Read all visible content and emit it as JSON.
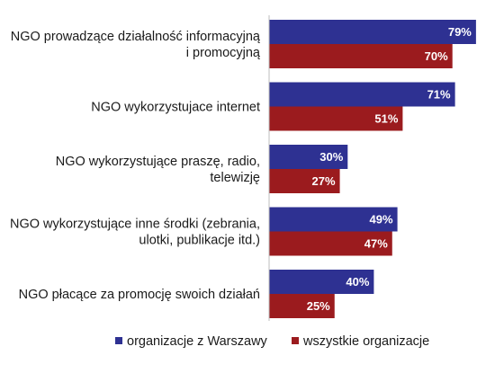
{
  "chart_data": {
    "type": "bar",
    "orientation": "horizontal",
    "categories": [
      [
        "NGO prowadzące działalność informacyjną",
        "i promocyjną"
      ],
      [
        "NGO wykorzystujace internet"
      ],
      [
        "NGO wykorzystujące praszę, radio,",
        "telewizję"
      ],
      [
        "NGO wykorzystujące inne środki (zebrania,",
        "ulotki, publikacje itd.)"
      ],
      [
        "NGO płacące za promocję swoich działań"
      ]
    ],
    "series": [
      {
        "name": "organizacje z Warszawy",
        "color": "#2e3192",
        "values": [
          79,
          71,
          30,
          49,
          40
        ],
        "labels": [
          "79%",
          "71%",
          "30%",
          "49%",
          "40%"
        ]
      },
      {
        "name": "wszystkie organizacje",
        "color": "#9b1b1e",
        "values": [
          70,
          51,
          27,
          47,
          25
        ],
        "labels": [
          "70%",
          "51%",
          "27%",
          "47%",
          "25%"
        ]
      }
    ],
    "xlim": [
      0,
      100
    ],
    "grid": false,
    "legend_position": "bottom",
    "title": "",
    "xlabel": "",
    "ylabel": ""
  }
}
